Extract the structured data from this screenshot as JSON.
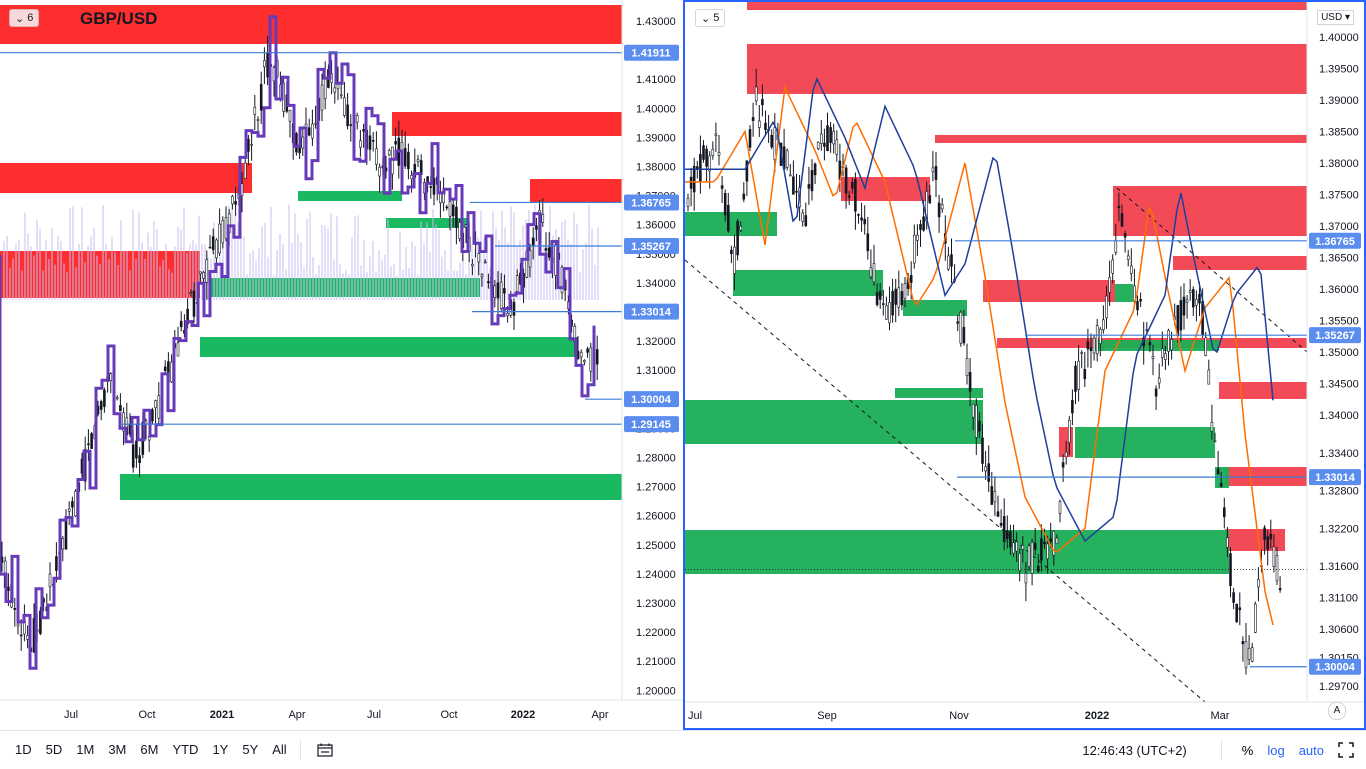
{
  "left_pane": {
    "symbol": "GBP/USD",
    "badge_count": "6",
    "price_ticks": [
      "1.43000",
      "1.42000",
      "1.41000",
      "1.40000",
      "1.39000",
      "1.38000",
      "1.37000",
      "1.36000",
      "1.35000",
      "1.34000",
      "1.33000",
      "1.32000",
      "1.31000",
      "1.30000",
      "1.29000",
      "1.28000",
      "1.27000",
      "1.26000",
      "1.25000",
      "1.24000",
      "1.23000",
      "1.22000",
      "1.21000",
      "1.20000"
    ],
    "time_ticks": [
      {
        "label": "Jul",
        "bold": false
      },
      {
        "label": "Oct",
        "bold": false
      },
      {
        "label": "2021",
        "bold": true
      },
      {
        "label": "Apr",
        "bold": false
      },
      {
        "label": "Jul",
        "bold": false
      },
      {
        "label": "Oct",
        "bold": false
      },
      {
        "label": "2022",
        "bold": true
      },
      {
        "label": "Apr",
        "bold": false
      }
    ],
    "price_tags": [
      "1.41911",
      "1.36765",
      "1.35267",
      "1.33014",
      "1.30004",
      "1.29145"
    ]
  },
  "right_pane": {
    "badge_count": "5",
    "currency": "USD",
    "currency_tag": "USD",
    "price_ticks": [
      "1.40000",
      "1.39500",
      "1.39000",
      "1.38500",
      "1.38000",
      "1.37500",
      "1.37000",
      "1.36500",
      "1.36000",
      "1.35500",
      "1.35000",
      "1.34500",
      "1.34000",
      "1.33400",
      "1.32800",
      "1.32200",
      "1.31600",
      "1.31100",
      "1.30600",
      "1.30150",
      "1.29700"
    ],
    "time_ticks": [
      {
        "label": "Jul",
        "bold": false
      },
      {
        "label": "Sep",
        "bold": false
      },
      {
        "label": "Nov",
        "bold": false
      },
      {
        "label": "2022",
        "bold": true
      },
      {
        "label": "Mar",
        "bold": false
      }
    ],
    "price_tags": [
      "1.36765",
      "1.35267",
      "1.33014",
      "1.30004"
    ],
    "auto_icon": "A"
  },
  "bottom_toolbar": {
    "timeframes": [
      "1D",
      "5D",
      "1M",
      "3M",
      "6M",
      "YTD",
      "1Y",
      "5Y",
      "All"
    ],
    "compare_icon": "calendar-range-icon",
    "clock": "12:46:43 (UTC+2)",
    "percent": "%",
    "log": "log",
    "auto": "auto",
    "fullscreen_icon": "fullscreen-icon"
  },
  "colors": {
    "supply_zone": "#f23645",
    "demand_zone": "#089981",
    "level_line": "#2962ff",
    "tag_bg": "#5b8def",
    "candle": "#131722",
    "outline": "#673ab7",
    "ma_fast": "#ff6d00",
    "ma_slow": "#1e3f9a"
  }
}
